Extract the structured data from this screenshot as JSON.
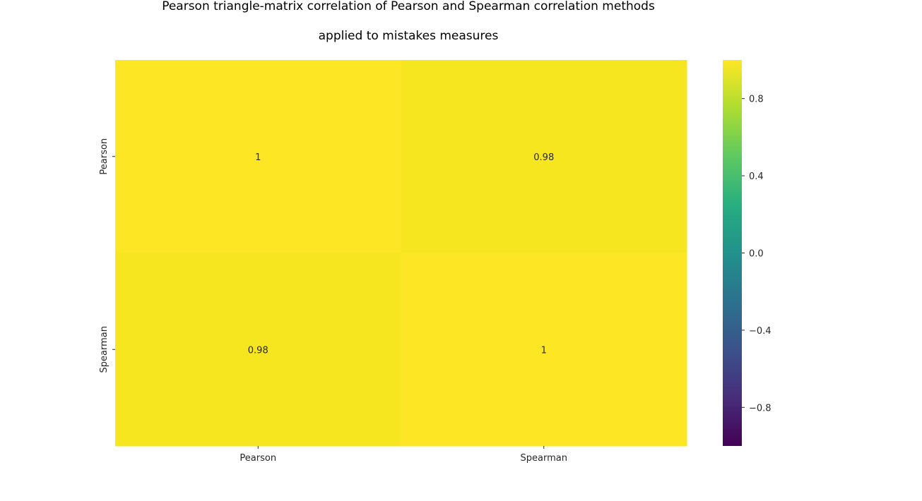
{
  "chart_data": {
    "type": "heatmap",
    "title_lines": [
      "Pearson triangle-matrix correlation of Pearson and Spearman correlation methods",
      "applied to mistakes measures"
    ],
    "x_categories": [
      "Pearson",
      "Spearman"
    ],
    "y_categories": [
      "Pearson",
      "Spearman"
    ],
    "values": [
      [
        1.0,
        0.98
      ],
      [
        0.98,
        1.0
      ]
    ],
    "annotations": [
      [
        "1",
        "0.98"
      ],
      [
        "0.98",
        "1"
      ]
    ],
    "colormap": "viridis",
    "vmin": -1,
    "vmax": 1,
    "colorbar_ticks": [
      0.8,
      0.4,
      0.0,
      -0.4,
      -0.8
    ],
    "colorbar_tick_labels": [
      "0.8",
      "0.4",
      "0.0",
      "−0.4",
      "−0.8"
    ],
    "colors": {
      "cell_1": "#fde725",
      "cell_098": "#f6e620",
      "colorbar_top": "#fde725",
      "colorbar_bottom": "#440154"
    }
  }
}
